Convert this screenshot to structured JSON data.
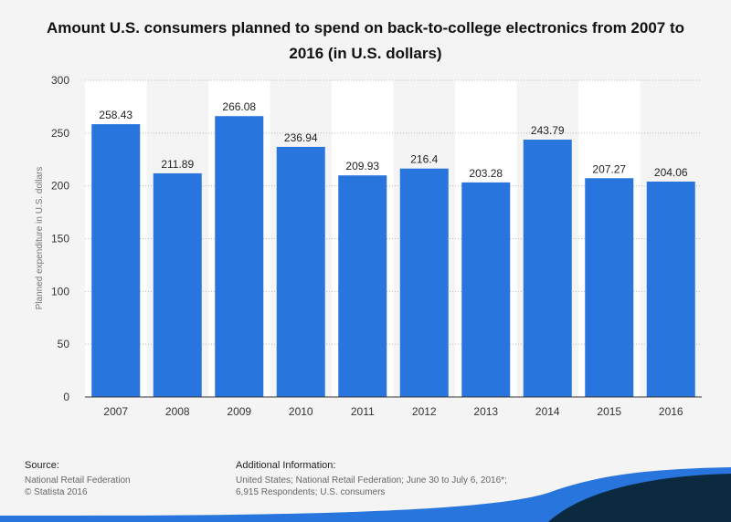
{
  "chart_data": {
    "type": "bar",
    "title": "Amount U.S. consumers planned to spend on back-to-college electronics from 2007 to 2016 (in U.S. dollars)",
    "xlabel": "",
    "ylabel": "Planned expenditure in U.S. dollars",
    "categories": [
      "2007",
      "2008",
      "2009",
      "2010",
      "2011",
      "2012",
      "2013",
      "2014",
      "2015",
      "2016"
    ],
    "values": [
      258.43,
      211.89,
      266.08,
      236.94,
      209.93,
      216.4,
      203.28,
      243.79,
      207.27,
      204.06
    ],
    "value_labels": [
      "258.43",
      "211.89",
      "266.08",
      "236.94",
      "209.93",
      "216.4",
      "203.28",
      "243.79",
      "207.27",
      "204.06"
    ],
    "yticks": [
      "0",
      "50",
      "100",
      "150",
      "200",
      "250",
      "300"
    ],
    "ylim": [
      0,
      300
    ],
    "grid": true,
    "bar_color": "#2876dd"
  },
  "footer": {
    "source_heading": "Source:",
    "source_lines": [
      "National Retail Federation",
      "© Statista 2016"
    ],
    "info_heading": "Additional Information:",
    "info_text": "United States; National Retail Federation; June 30 to July 6, 2016*; 6,915 Respondents; U.S. consumers"
  },
  "colors": {
    "wave_dark": "#0b2a40",
    "wave_blue": "#2876dd"
  }
}
